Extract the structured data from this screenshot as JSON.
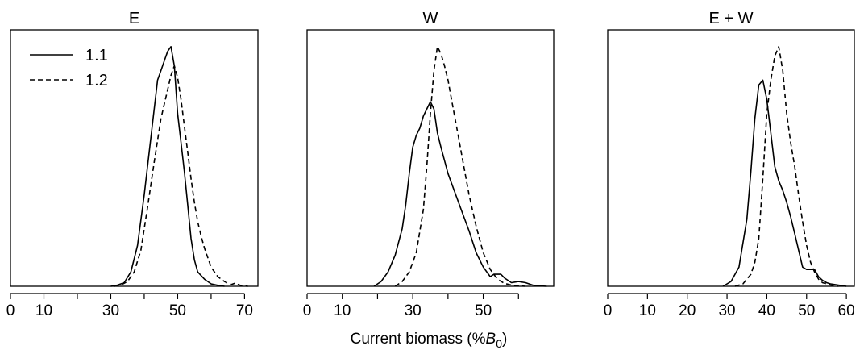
{
  "figure": {
    "xlabel_main": "Current biomass (%",
    "xlabel_symbol": "B",
    "xlabel_sub": "0",
    "xlabel_close": ")"
  },
  "legend": [
    {
      "label": "1.1",
      "style": "solid"
    },
    {
      "label": "1.2",
      "style": "dashed"
    }
  ],
  "chart_data": [
    {
      "type": "line",
      "title": "E",
      "xlim": [
        0,
        74
      ],
      "ylim": [
        0,
        1.07
      ],
      "xticks": [
        0,
        10,
        20,
        30,
        40,
        50,
        60,
        70
      ],
      "xticklabels": [
        "0",
        "10",
        "",
        "30",
        "",
        "50",
        "",
        "70"
      ],
      "series": [
        {
          "name": "1.1",
          "style": "solid",
          "x": [
            30,
            32,
            34,
            36,
            38,
            40,
            42,
            44,
            45,
            46,
            47,
            48,
            49,
            50,
            51,
            52,
            53,
            54,
            55,
            56,
            58,
            60,
            62,
            64
          ],
          "y": [
            0,
            0.005,
            0.015,
            0.06,
            0.17,
            0.38,
            0.62,
            0.86,
            0.9,
            0.94,
            0.98,
            1.0,
            0.92,
            0.72,
            0.6,
            0.48,
            0.34,
            0.2,
            0.11,
            0.06,
            0.03,
            0.01,
            0.004,
            0
          ]
        },
        {
          "name": "1.2",
          "style": "dashed",
          "x": [
            31,
            33,
            35,
            37,
            39,
            41,
            43,
            45,
            47,
            48,
            49,
            50,
            51,
            52,
            53,
            54,
            55,
            56,
            57,
            58,
            60,
            62,
            64,
            66,
            67,
            69,
            71
          ],
          "y": [
            0,
            0.005,
            0.02,
            0.06,
            0.15,
            0.33,
            0.52,
            0.7,
            0.82,
            0.88,
            0.92,
            0.87,
            0.78,
            0.67,
            0.56,
            0.45,
            0.35,
            0.27,
            0.21,
            0.16,
            0.08,
            0.04,
            0.02,
            0.007,
            0.012,
            0.003,
            0
          ]
        }
      ]
    },
    {
      "type": "line",
      "title": "W",
      "xlim": [
        0,
        70
      ],
      "ylim": [
        0,
        1.07
      ],
      "xticks": [
        0,
        10,
        20,
        30,
        40,
        50,
        60
      ],
      "xticklabels": [
        "0",
        "10",
        "",
        "30",
        "",
        "50",
        ""
      ],
      "series": [
        {
          "name": "1.1",
          "style": "solid",
          "x": [
            19,
            21,
            23,
            25,
            27,
            28,
            29,
            30,
            31,
            32,
            33,
            34,
            35,
            36,
            37,
            38,
            40,
            42,
            44,
            46,
            48,
            50,
            52,
            53,
            55,
            56,
            58,
            60,
            62,
            64,
            66,
            68
          ],
          "y": [
            0,
            0.02,
            0.06,
            0.13,
            0.24,
            0.34,
            0.47,
            0.58,
            0.63,
            0.66,
            0.71,
            0.74,
            0.77,
            0.74,
            0.64,
            0.58,
            0.47,
            0.39,
            0.31,
            0.23,
            0.14,
            0.08,
            0.04,
            0.05,
            0.05,
            0.035,
            0.015,
            0.02,
            0.015,
            0.005,
            0.002,
            0
          ]
        },
        {
          "name": "1.2",
          "style": "dashed",
          "x": [
            25,
            27,
            29,
            31,
            33,
            34,
            35,
            36,
            37,
            38,
            39,
            40,
            41,
            42,
            43,
            44,
            46,
            48,
            50,
            52,
            54,
            56,
            58,
            60,
            62
          ],
          "y": [
            0,
            0.02,
            0.06,
            0.14,
            0.32,
            0.5,
            0.72,
            0.9,
            1.0,
            0.97,
            0.92,
            0.86,
            0.78,
            0.7,
            0.62,
            0.54,
            0.38,
            0.25,
            0.14,
            0.07,
            0.03,
            0.012,
            0.005,
            0.002,
            0
          ]
        }
      ]
    },
    {
      "type": "line",
      "title": "E + W",
      "xlim": [
        0,
        62
      ],
      "ylim": [
        0,
        1.07
      ],
      "xticks": [
        0,
        10,
        20,
        30,
        40,
        50,
        60
      ],
      "xticklabels": [
        "0",
        "10",
        "20",
        "30",
        "40",
        "50",
        "60"
      ],
      "series": [
        {
          "name": "1.1",
          "style": "solid",
          "x": [
            29,
            31,
            33,
            35,
            36,
            37,
            38,
            39,
            40,
            41,
            42,
            43,
            44,
            45,
            46,
            47,
            48,
            49,
            50,
            51,
            52,
            53,
            54,
            55,
            56,
            58,
            60
          ],
          "y": [
            0,
            0.02,
            0.08,
            0.28,
            0.48,
            0.7,
            0.84,
            0.86,
            0.78,
            0.64,
            0.5,
            0.44,
            0.4,
            0.35,
            0.29,
            0.22,
            0.15,
            0.08,
            0.07,
            0.07,
            0.07,
            0.04,
            0.025,
            0.015,
            0.01,
            0.005,
            0
          ]
        },
        {
          "name": "1.2",
          "style": "dashed",
          "x": [
            32,
            34,
            36,
            37,
            38,
            39,
            40,
            41,
            42,
            43,
            44,
            45,
            46,
            47,
            48,
            49,
            50,
            51,
            52,
            53,
            54,
            56,
            58
          ],
          "y": [
            0,
            0.01,
            0.05,
            0.1,
            0.2,
            0.45,
            0.72,
            0.86,
            0.96,
            1.0,
            0.9,
            0.72,
            0.6,
            0.5,
            0.38,
            0.27,
            0.17,
            0.1,
            0.06,
            0.03,
            0.015,
            0.005,
            0
          ]
        }
      ]
    }
  ]
}
